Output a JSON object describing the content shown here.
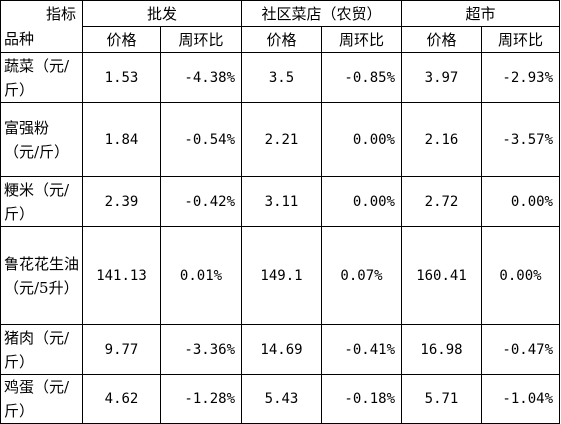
{
  "header": {
    "corner_top": "指标",
    "corner_bottom": "品种",
    "groups": [
      "批发",
      "社区菜店（农贸）",
      "超市"
    ],
    "subcols": [
      "价格",
      "周环比",
      "价格",
      "周环比",
      "价格",
      "周环比"
    ]
  },
  "rows": [
    {
      "label": "蔬菜（元/斤）",
      "values": [
        "1.53",
        "-4.38%",
        "3.5",
        "-0.85%",
        "3.97",
        "-2.93%"
      ]
    },
    {
      "label": "富强粉（元/斤）",
      "values": [
        "1.84",
        "-0.54%",
        "2.21",
        "0.00%",
        "2.16",
        "-3.57%"
      ]
    },
    {
      "label": "粳米（元/斤）",
      "values": [
        "2.39",
        "-0.42%",
        "3.11",
        "0.00%",
        "2.72",
        "0.00%"
      ]
    },
    {
      "label": "鲁花花生油（元/5升）",
      "values": [
        "141.13",
        "0.01%",
        "149.1",
        "0.07%",
        "160.41",
        "0.00%"
      ]
    },
    {
      "label": "猪肉（元/斤）",
      "values": [
        "9.77",
        "-3.36%",
        "14.69",
        "-0.41%",
        "16.98",
        "-0.47%"
      ]
    },
    {
      "label": "鸡蛋（元/斤）",
      "values": [
        "4.62",
        "-1.28%",
        "5.43",
        "-0.18%",
        "5.71",
        "-1.04%"
      ]
    }
  ]
}
